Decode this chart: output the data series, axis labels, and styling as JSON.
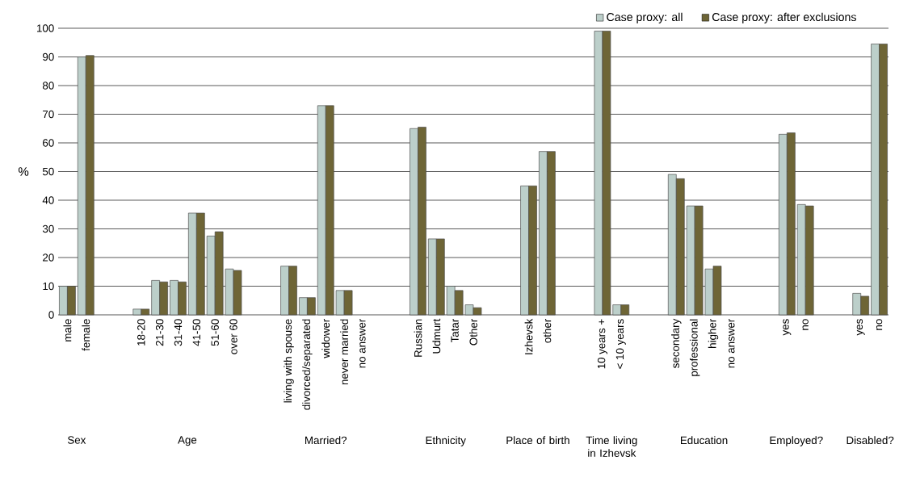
{
  "chart_data": {
    "type": "bar",
    "ylabel": "%",
    "categories": [
      "male",
      "female",
      null,
      null,
      "18-20",
      "21-30",
      "31-40",
      "41-50",
      "51-60",
      "over 60",
      null,
      null,
      "living with spouse",
      "divorced/separated",
      "widower",
      "never married",
      "no answer",
      null,
      null,
      "Russian",
      "Udmurt",
      "Tatar",
      "Other",
      null,
      null,
      "Izhevsk",
      "other",
      null,
      null,
      "10 years +",
      "< 10 years",
      null,
      null,
      "secondary",
      "professional",
      "higher",
      "no answer",
      null,
      null,
      "yes",
      "no",
      null,
      null,
      "yes",
      "no"
    ],
    "series": [
      {
        "name": "Case proxy: all",
        "color": "#bccfca",
        "values": [
          10,
          90,
          null,
          null,
          2,
          12,
          12,
          35.5,
          27.5,
          16,
          null,
          null,
          17,
          6,
          73,
          8.5,
          null,
          null,
          null,
          65,
          26.5,
          10,
          3.5,
          null,
          null,
          45,
          57,
          null,
          null,
          99,
          3.5,
          null,
          null,
          49,
          38,
          16,
          null,
          null,
          null,
          63,
          38.5,
          null,
          null,
          7.5,
          94.5
        ]
      },
      {
        "name": "Case proxy: after exclusions",
        "color": "#6e6536",
        "values": [
          10,
          90.5,
          null,
          null,
          2,
          11.5,
          11.5,
          35.5,
          29,
          15.5,
          null,
          null,
          17,
          6,
          73,
          8.5,
          null,
          null,
          null,
          65.5,
          26.5,
          8.5,
          2.5,
          null,
          null,
          45,
          57,
          null,
          null,
          99,
          3.5,
          null,
          null,
          47.5,
          38,
          17,
          null,
          null,
          null,
          63.5,
          38,
          null,
          null,
          6.5,
          94.5
        ]
      }
    ],
    "ylim": [
      0,
      100
    ],
    "yticks": [
      0,
      10,
      20,
      30,
      40,
      50,
      60,
      70,
      80,
      90,
      100
    ],
    "grid": "y",
    "legend": "top right",
    "annotations": [
      "Sex",
      "Age",
      "Married?",
      "Ethnicity",
      "Place of birth",
      "Time living in Izhevsk",
      "Education",
      "Employed?",
      "Disabled?"
    ]
  }
}
